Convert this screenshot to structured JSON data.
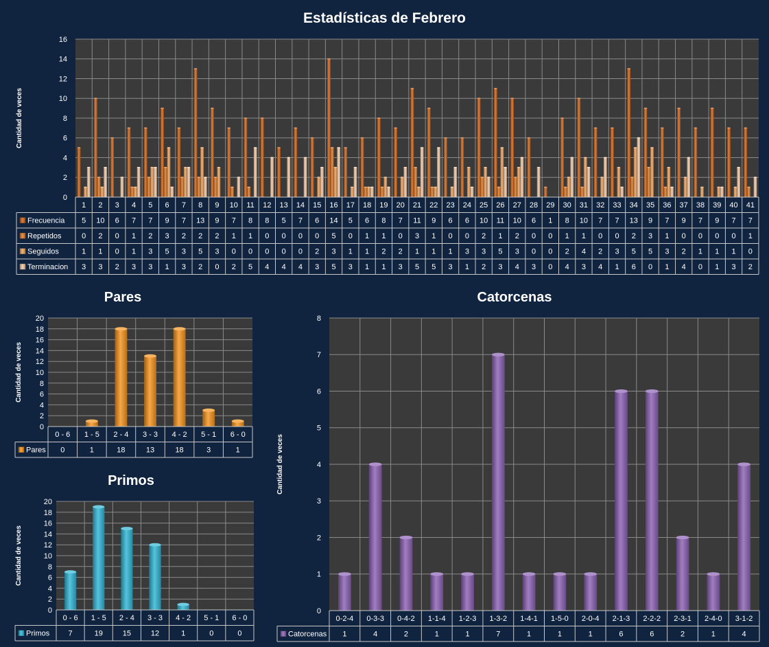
{
  "colors": {
    "background": "#10233f",
    "plot_area": "#3a3a3a",
    "gridline": "#8a8a8a",
    "table_border": "#c8c8c8",
    "frecuencia": "#d0651a",
    "repetidos": "#e07c2a",
    "seguidos": "#eea460",
    "terminacion": "#f3c9a8",
    "pares": "#f7941d",
    "primos": "#31b7d6",
    "catorcenas": "#8c62b4"
  },
  "chart_data": [
    {
      "id": "estadisticas",
      "type": "bar",
      "title": "Estadísticas de Febrero",
      "ylabel": "Cantidad de veces",
      "ylim": [
        0,
        16
      ],
      "yticks": [
        0,
        2,
        4,
        6,
        8,
        10,
        12,
        14,
        16
      ],
      "categories": [
        "1",
        "2",
        "3",
        "4",
        "5",
        "6",
        "7",
        "8",
        "9",
        "10",
        "11",
        "12",
        "13",
        "14",
        "15",
        "16",
        "17",
        "18",
        "19",
        "20",
        "21",
        "22",
        "23",
        "24",
        "25",
        "26",
        "27",
        "28",
        "29",
        "30",
        "31",
        "32",
        "33",
        "34",
        "35",
        "36",
        "37",
        "38",
        "39",
        "40",
        "41"
      ],
      "series": [
        {
          "name": "Frecuencia",
          "color": "#d0651a",
          "values": [
            5,
            10,
            6,
            7,
            7,
            9,
            7,
            13,
            9,
            7,
            8,
            8,
            5,
            7,
            6,
            14,
            5,
            6,
            8,
            7,
            11,
            9,
            6,
            6,
            10,
            11,
            10,
            6,
            1,
            8,
            10,
            7,
            7,
            13,
            9,
            7,
            9,
            7,
            9,
            7,
            7
          ]
        },
        {
          "name": "Repetidos",
          "color": "#e07c2a",
          "values": [
            0,
            2,
            0,
            1,
            2,
            3,
            2,
            2,
            2,
            1,
            1,
            0,
            0,
            0,
            0,
            5,
            0,
            1,
            1,
            0,
            3,
            1,
            0,
            0,
            2,
            1,
            2,
            0,
            0,
            1,
            1,
            0,
            0,
            2,
            3,
            1,
            0,
            0,
            0,
            0,
            1
          ]
        },
        {
          "name": "Seguidos",
          "color": "#eea460",
          "values": [
            1,
            1,
            0,
            1,
            3,
            5,
            3,
            5,
            3,
            0,
            0,
            0,
            0,
            0,
            2,
            3,
            1,
            1,
            2,
            2,
            1,
            1,
            1,
            3,
            3,
            5,
            3,
            0,
            0,
            2,
            4,
            2,
            3,
            5,
            5,
            3,
            2,
            1,
            1,
            1,
            0
          ]
        },
        {
          "name": "Terminacion",
          "color": "#f3c9a8",
          "values": [
            3,
            3,
            2,
            3,
            3,
            1,
            3,
            2,
            0,
            2,
            5,
            4,
            4,
            4,
            3,
            5,
            3,
            1,
            1,
            3,
            5,
            5,
            3,
            1,
            2,
            3,
            4,
            3,
            0,
            4,
            3,
            4,
            1,
            6,
            0,
            1,
            4,
            0,
            1,
            3,
            2
          ]
        }
      ]
    },
    {
      "id": "pares",
      "type": "bar",
      "title": "Pares",
      "ylabel": "Cantidad de veces",
      "ylim": [
        0,
        20
      ],
      "yticks": [
        0,
        2,
        4,
        6,
        8,
        10,
        12,
        14,
        16,
        18,
        20
      ],
      "categories": [
        "0 - 6",
        "1 - 5",
        "2 - 4",
        "3 - 3",
        "4 - 2",
        "5 - 1",
        "6 - 0"
      ],
      "series": [
        {
          "name": "Pares",
          "color": "#f7941d",
          "values": [
            0,
            1,
            18,
            13,
            18,
            3,
            1
          ]
        }
      ]
    },
    {
      "id": "primos",
      "type": "bar",
      "title": "Primos",
      "ylabel": "Cantidad de veces",
      "ylim": [
        0,
        20
      ],
      "yticks": [
        0,
        2,
        4,
        6,
        8,
        10,
        12,
        14,
        16,
        18,
        20
      ],
      "categories": [
        "0 - 6",
        "1 - 5",
        "2 - 4",
        "3 - 3",
        "4 - 2",
        "5 - 1",
        "6 - 0"
      ],
      "series": [
        {
          "name": "Primos",
          "color": "#31b7d6",
          "values": [
            7,
            19,
            15,
            12,
            1,
            0,
            0
          ]
        }
      ]
    },
    {
      "id": "catorcenas",
      "type": "bar",
      "title": "Catorcenas",
      "ylabel": "Cantidad de veces",
      "ylim": [
        0,
        8
      ],
      "yticks": [
        0,
        1,
        2,
        3,
        4,
        5,
        6,
        7,
        8
      ],
      "categories": [
        "0-2-4",
        "0-3-3",
        "0-4-2",
        "1-1-4",
        "1-2-3",
        "1-3-2",
        "1-4-1",
        "1-5-0",
        "2-0-4",
        "2-1-3",
        "2-2-2",
        "2-3-1",
        "2-4-0",
        "3-1-2"
      ],
      "series": [
        {
          "name": "Catorcenas",
          "color": "#8c62b4",
          "values": [
            1,
            4,
            2,
            1,
            1,
            7,
            1,
            1,
            1,
            6,
            6,
            2,
            1,
            4
          ]
        }
      ]
    }
  ]
}
